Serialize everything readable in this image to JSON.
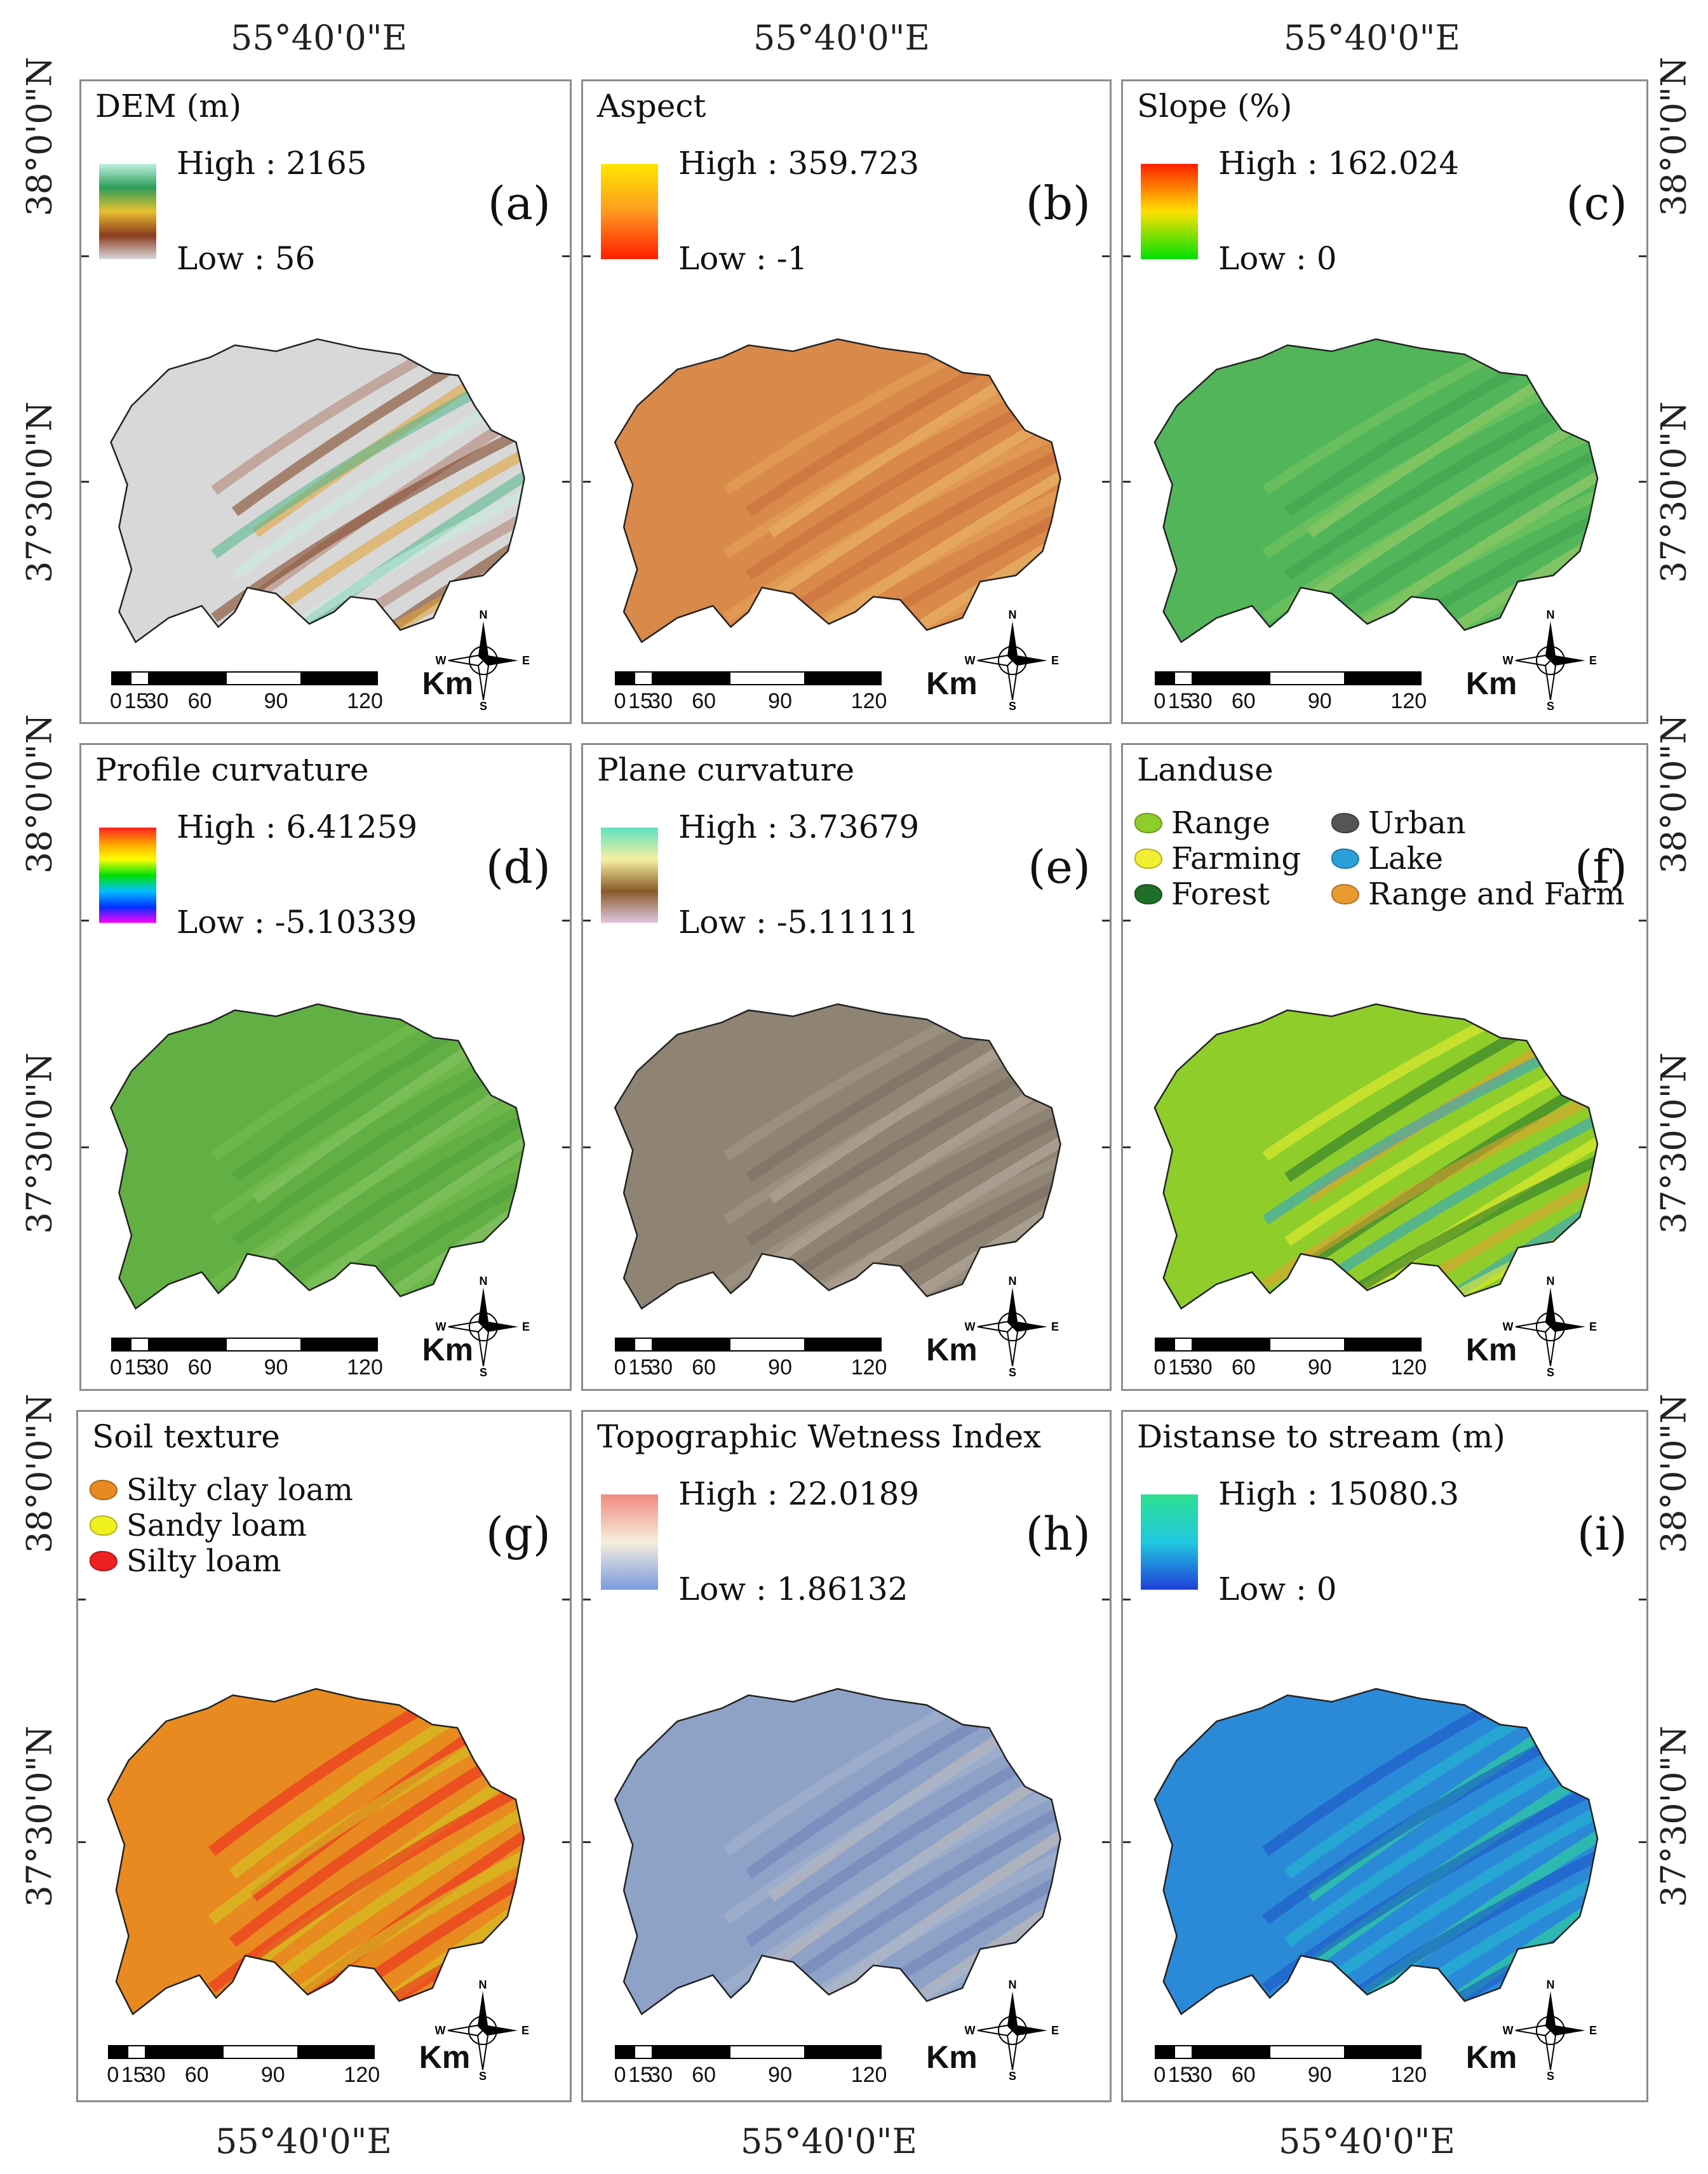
{
  "figure": {
    "top_longitudes": [
      "55°40'0\"E",
      "55°40'0\"E",
      "55°40'0\"E"
    ],
    "bottom_longitudes": [
      "55°40'0\"E",
      "55°40'0\"E",
      "55°40'0\"E"
    ],
    "left_latitudes": [
      "38°0'0\"N",
      "37°30'0\"N",
      "38°0'0\"N",
      "37°30'0\"N",
      "38°0'0\"N",
      "37°30'0\"N"
    ],
    "right_latitudes": [
      "38°0'0\"N",
      "37°30'0\"N",
      "38°0'0\"N",
      "37°30'0\"N",
      "38°0'0\"N",
      "37°30'0\"N"
    ]
  },
  "scalebar": {
    "unit": "Km",
    "ticks": [
      "0",
      "15",
      "30",
      "60",
      "90",
      "120"
    ]
  },
  "compass": {
    "n": "N",
    "s": "S",
    "e": "E",
    "w": "W"
  },
  "panels": [
    {
      "id": "a",
      "title": "DEM (m)",
      "label": "(a)",
      "high": "High : 2165",
      "low": "Low : 56",
      "legend_colors": [
        "#bff0e0",
        "#2e9e5a",
        "#e8c030",
        "#8b3a1e",
        "#d9d9d9"
      ],
      "map_colors": [
        "#d8d8d8",
        "#b08070",
        "#7a3a1a",
        "#e2a030",
        "#4db88a",
        "#c9eee0"
      ]
    },
    {
      "id": "b",
      "title": "Aspect",
      "label": "(b)",
      "high": "High : 359.723",
      "low": "Low : -1",
      "legend_colors": [
        "#ffe800",
        "#ff9a20",
        "#ff1e00"
      ],
      "map_colors": [
        "#d9894a",
        "#e6a55a",
        "#c96a3a",
        "#efc070"
      ]
    },
    {
      "id": "c",
      "title": "Slope (%)",
      "label": "(c)",
      "high": "High : 162.024",
      "low": "Low : 0",
      "legend_colors": [
        "#ff2000",
        "#ffe000",
        "#00e000"
      ],
      "map_colors": [
        "#52b55a",
        "#7cc760",
        "#3f9f4f",
        "#a8d070"
      ]
    },
    {
      "id": "d",
      "title": "Profile curvature",
      "label": "(d)",
      "high": "High : 6.41259",
      "low": "Low : -5.10339",
      "legend_colors": [
        "#ff2020",
        "#ffa000",
        "#ffff00",
        "#00e000",
        "#00c0ff",
        "#0030ff",
        "#ff00ff"
      ],
      "map_colors": [
        "#62b044",
        "#78c050",
        "#4e9e3c",
        "#90c870"
      ]
    },
    {
      "id": "e",
      "title": "Plane curvature",
      "label": "(e)",
      "high": "High : 3.73679",
      "low": "Low : -5.11111",
      "legend_colors": [
        "#5fe0c0",
        "#f6f0a0",
        "#8a5a2a",
        "#e0c8e0"
      ],
      "map_colors": [
        "#8f8374",
        "#a59a8a",
        "#766b5e",
        "#bdb3a4"
      ]
    },
    {
      "id": "f",
      "title": "Landuse",
      "label": "(f)",
      "categories": [
        {
          "name": "Range",
          "color": "#8fce2a"
        },
        {
          "name": "Urban",
          "color": "#555555"
        },
        {
          "name": "Farming",
          "color": "#f2ee30"
        },
        {
          "name": "Lake",
          "color": "#2aa0d8"
        },
        {
          "name": "Forest",
          "color": "#1f6e2a"
        },
        {
          "name": "Range and Farm",
          "color": "#e89a30"
        }
      ],
      "map_colors": [
        "#8fce2a",
        "#f2ee30",
        "#1f6e2a",
        "#e89a30",
        "#2aa0d8"
      ]
    },
    {
      "id": "g",
      "title": "Soil texture",
      "label": "(g)",
      "categories": [
        {
          "name": "Silty clay loam",
          "color": "#e88a20"
        },
        {
          "name": "Sandy loam",
          "color": "#f0f020"
        },
        {
          "name": "Silty loam",
          "color": "#ee2020"
        }
      ],
      "map_colors": [
        "#e88a20",
        "#ee2020",
        "#d0d020"
      ]
    },
    {
      "id": "h",
      "title": "Topographic Wetness Index",
      "label": "(h)",
      "high": "High : 22.0189",
      "low": "Low : 1.86132",
      "legend_colors": [
        "#f08a80",
        "#f6eedc",
        "#7a9ae0"
      ],
      "map_colors": [
        "#8ea2c8",
        "#a8b6d0",
        "#7080b8",
        "#c8c0b8"
      ]
    },
    {
      "id": "i",
      "title": "Distanse to stream (m)",
      "label": "(i)",
      "high": "High : 15080.3",
      "low": "Low : 0",
      "legend_colors": [
        "#2ee090",
        "#20c8e0",
        "#2040d8"
      ],
      "map_colors": [
        "#2a8ad8",
        "#1e50c8",
        "#22c0d0",
        "#30e090"
      ]
    }
  ]
}
